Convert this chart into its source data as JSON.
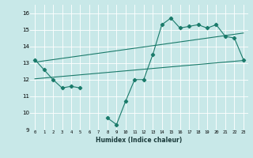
{
  "title": "",
  "xlabel": "Humidex (Indice chaleur)",
  "bg_color": "#c8e8e8",
  "line_color": "#1a7a6a",
  "grid_color": "#e8e8e8",
  "x": [
    0,
    1,
    2,
    3,
    4,
    5,
    6,
    7,
    8,
    9,
    10,
    11,
    12,
    13,
    14,
    15,
    16,
    17,
    18,
    19,
    20,
    21,
    22,
    23
  ],
  "line1": [
    13.2,
    12.6,
    12.0,
    11.5,
    11.6,
    11.5,
    null,
    null,
    9.7,
    9.3,
    10.7,
    12.0,
    12.0,
    13.5,
    15.3,
    15.7,
    15.1,
    15.2,
    15.3,
    15.1,
    15.3,
    14.6,
    14.5,
    13.2
  ],
  "line2_x": [
    0,
    23
  ],
  "line2_y": [
    12.05,
    13.15
  ],
  "line3_x": [
    0,
    23
  ],
  "line3_y": [
    13.05,
    14.8
  ],
  "ylim": [
    9,
    16.5
  ],
  "xlim": [
    -0.5,
    23.5
  ],
  "yticks": [
    9,
    10,
    11,
    12,
    13,
    14,
    15,
    16
  ],
  "xtick_labels": [
    "0",
    "1",
    "2",
    "3",
    "4",
    "5",
    "6",
    "7",
    "8",
    "9",
    "10",
    "11",
    "12",
    "13",
    "14",
    "15",
    "16",
    "17",
    "18",
    "19",
    "20",
    "21",
    "22",
    "23"
  ]
}
